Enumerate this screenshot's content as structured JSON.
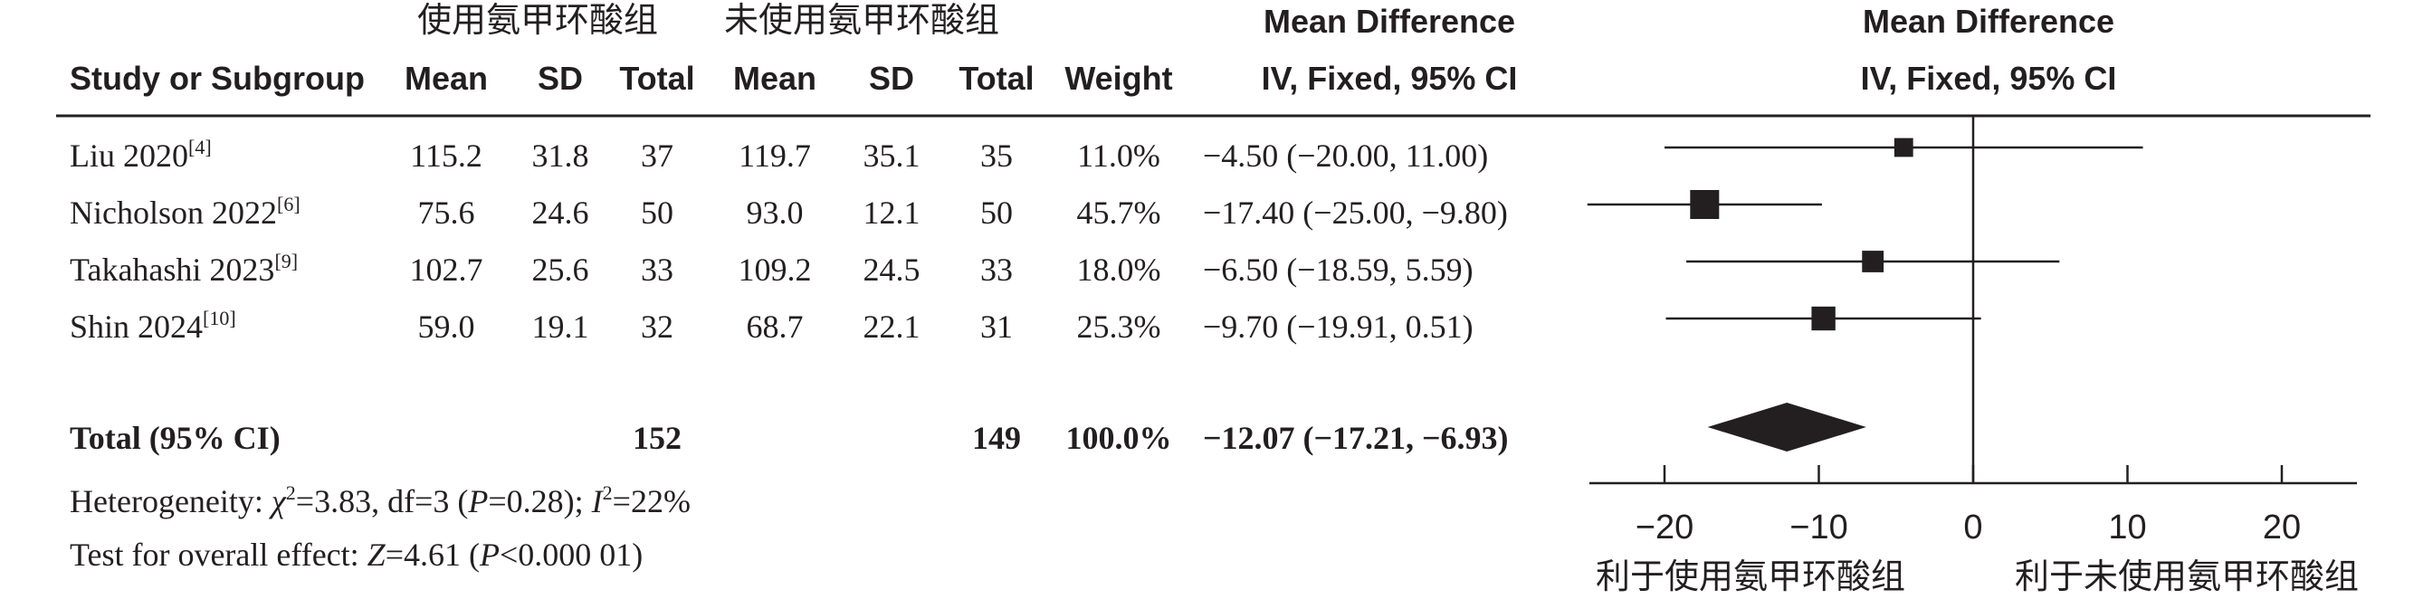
{
  "header": {
    "group1": "使用氨甲环酸组",
    "group2": "未使用氨甲环酸组",
    "md_title": "Mean Difference",
    "md_subtitle": "IV, Fixed, 95% CI",
    "plot_title": "Mean Difference",
    "plot_subtitle": "IV, Fixed, 95% CI",
    "columns": [
      "Study or Subgroup",
      "Mean",
      "SD",
      "Total",
      "Mean",
      "SD",
      "Total",
      "Weight"
    ]
  },
  "studies": [
    {
      "name": "Liu 2020",
      "ref": "[4]",
      "mean1": "115.2",
      "sd1": "31.8",
      "n1": "37",
      "mean2": "119.7",
      "sd2": "35.1",
      "n2": "35",
      "weight": "11.0%",
      "ci": "−4.50 (−20.00, 11.00)"
    },
    {
      "name": "Nicholson 2022",
      "ref": "[6]",
      "mean1": "75.6",
      "sd1": "24.6",
      "n1": "50",
      "mean2": "93.0",
      "sd2": "12.1",
      "n2": "50",
      "weight": "45.7%",
      "ci": "−17.40 (−25.00, −9.80)"
    },
    {
      "name": "Takahashi 2023",
      "ref": "[9]",
      "mean1": "102.7",
      "sd1": "25.6",
      "n1": "33",
      "mean2": "109.2",
      "sd2": "24.5",
      "n2": "33",
      "weight": "18.0%",
      "ci": "−6.50 (−18.59, 5.59)"
    },
    {
      "name": "Shin 2024",
      "ref": "[10]",
      "mean1": "59.0",
      "sd1": "19.1",
      "n1": "32",
      "mean2": "68.7",
      "sd2": "22.1",
      "n2": "31",
      "weight": "25.3%",
      "ci": "−9.70 (−19.91, 0.51)"
    }
  ],
  "total": {
    "label": "Total (95% CI)",
    "n1": "152",
    "n2": "149",
    "weight": "100.0%",
    "ci": "−12.07 (−17.21, −6.93)"
  },
  "heterogeneity": {
    "prefix": "Heterogeneity: ",
    "chi_symbol": "χ",
    "chi_sup": "2",
    "chi_rest": "=3.83, df=3 (",
    "p_symbol": "P",
    "p_rest": "=0.28); ",
    "i_symbol": "I",
    "i_sup": "2",
    "i_rest": "=22%"
  },
  "overall": {
    "prefix": "Test for overall effect: ",
    "z_symbol": "Z",
    "z_rest": "=4.61 (",
    "p_symbol": "P",
    "p_rest": "<0.000 01)"
  },
  "axis": {
    "ticks": [
      -20,
      -10,
      0,
      10,
      20
    ],
    "tick_labels": [
      "−20",
      "−10",
      "0",
      "10",
      "20"
    ],
    "left_label": "利于使用氨甲环酸组",
    "right_label": "利于未使用氨甲环酸组"
  },
  "chart_data": {
    "type": "forest",
    "title": "Mean Difference IV, Fixed, 95% CI",
    "xlim": [
      -25,
      25
    ],
    "categories": [
      "Liu 2020",
      "Nicholson 2022",
      "Takahashi 2023",
      "Shin 2024"
    ],
    "series": [
      {
        "name": "",
        "estimate": [
          -4.5,
          -17.4,
          -6.5,
          -9.7
        ],
        "lower": [
          -20.0,
          -25.0,
          -18.59,
          -19.91
        ],
        "upper": [
          11.0,
          -9.8,
          5.59,
          0.51
        ],
        "weight": [
          11.0,
          45.7,
          18.0,
          25.3
        ]
      }
    ],
    "pooled": {
      "estimate": -12.07,
      "lower": -17.21,
      "upper": -6.93
    }
  }
}
